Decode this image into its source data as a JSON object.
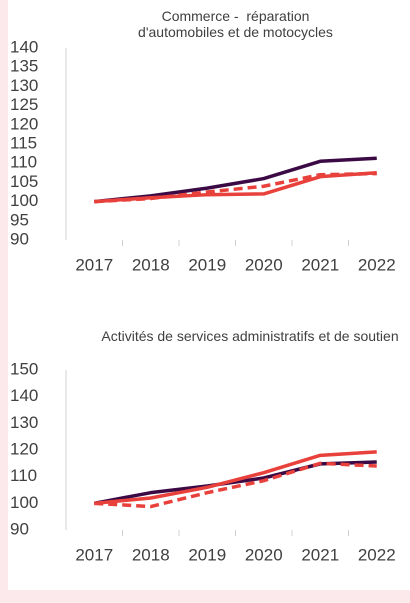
{
  "chart_data": [
    {
      "type": "line",
      "title": "Commerce -  réparation d'automobiles et de motocycles",
      "categories": [
        "2017",
        "2018",
        "2019",
        "2020",
        "2021",
        "2022"
      ],
      "ylim": [
        90,
        140
      ],
      "yticks": [
        90,
        95,
        100,
        105,
        110,
        115,
        120,
        125,
        130,
        135,
        140
      ],
      "series": [
        {
          "color": "#3b0a45",
          "dash": false,
          "values": [
            100,
            101.5,
            103.5,
            106,
            110.5,
            111.3
          ]
        },
        {
          "color": "#e8413c",
          "dash": false,
          "values": [
            100,
            101,
            101.8,
            102,
            106.5,
            107.5
          ]
        },
        {
          "color": "#e8413c",
          "dash": true,
          "values": [
            100,
            100.8,
            102.5,
            104,
            107,
            107.3
          ]
        }
      ]
    },
    {
      "type": "line",
      "title": "Activités de services administratifs et de soutien",
      "categories": [
        "2017",
        "2018",
        "2019",
        "2020",
        "2021",
        "2022"
      ],
      "ylim": [
        90,
        150
      ],
      "yticks": [
        90,
        100,
        110,
        120,
        130,
        140,
        150
      ],
      "series": [
        {
          "color": "#3b0a45",
          "dash": false,
          "values": [
            100,
            104,
            106.5,
            109.5,
            114.8,
            115.5
          ]
        },
        {
          "color": "#e8413c",
          "dash": false,
          "values": [
            100,
            102,
            106,
            111.5,
            118,
            119.3
          ]
        },
        {
          "color": "#e8413c",
          "dash": true,
          "values": [
            100,
            98.8,
            104,
            108.5,
            115,
            114
          ]
        }
      ]
    }
  ]
}
